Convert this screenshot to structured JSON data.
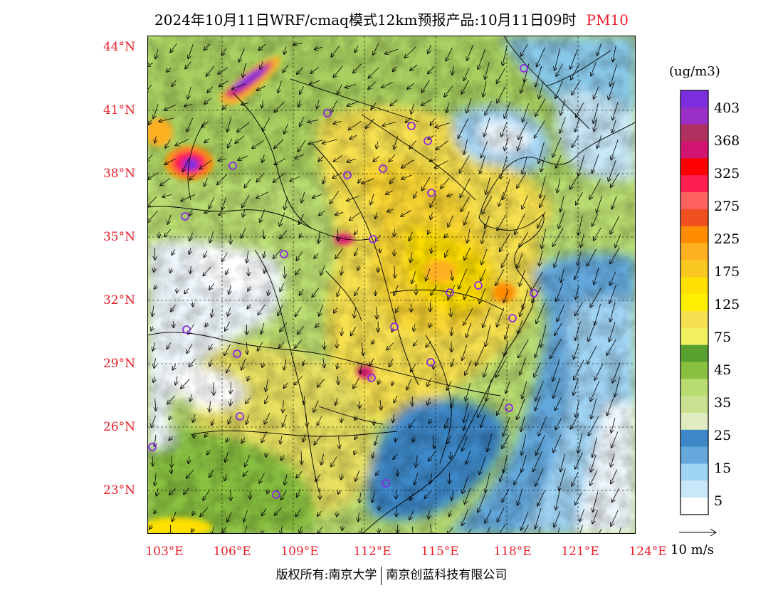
{
  "title": {
    "main": "2024年10月11日WRF/cmaq模式12km预报产品:10月11日09时",
    "pollutant": "PM10",
    "pollutant_color": "#e8202a"
  },
  "axes": {
    "lat_labels": [
      "44°N",
      "41°N",
      "38°N",
      "35°N",
      "32°N",
      "29°N",
      "26°N",
      "23°N"
    ],
    "lon_labels": [
      "103°E",
      "106°E",
      "109°E",
      "112°E",
      "115°E",
      "118°E",
      "121°E",
      "124°E"
    ],
    "label_color": "#e8202a"
  },
  "colorbar": {
    "unit": "(ug/m3)",
    "labels": [
      "403",
      "368",
      "325",
      "275",
      "225",
      "175",
      "125",
      "75",
      "45",
      "35",
      "25",
      "15",
      "5"
    ],
    "colors": [
      "#7b2ee0",
      "#9b30c8",
      "#b03060",
      "#d01470",
      "#ff0000",
      "#ff1e50",
      "#ff6060",
      "#f05020",
      "#ff8c00",
      "#ffb020",
      "#f8c820",
      "#ffe000",
      "#fff000",
      "#f6e050",
      "#f0f060",
      "#58a030",
      "#88c040",
      "#b8dc70",
      "#c8e090",
      "#e0ecc0",
      "#3c88c8",
      "#64a8dc",
      "#a0d4f4",
      "#c8e8f8",
      "#ffffff"
    ]
  },
  "wind_scale": {
    "label": "10 m/s"
  },
  "map": {
    "cities": 26
  },
  "footer": {
    "left": "版权所有:南京大学",
    "right": "南京创蓝科技有限公司"
  }
}
